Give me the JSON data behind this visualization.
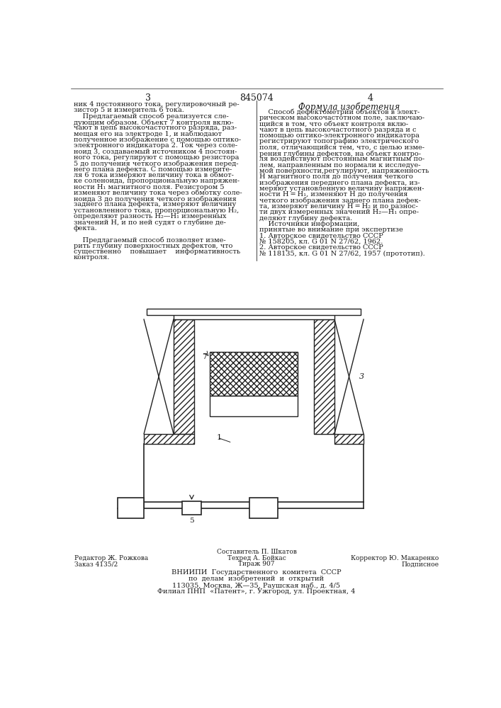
{
  "page_num_left": "3",
  "page_num_center": "845074",
  "page_num_right": "4",
  "formula_title": "Формула изобретения",
  "left_col_text": [
    "ник 4 постоянного тока, регулировочный ре-",
    "зистор 5 и измеритель 6 тока.",
    "    Предлагаемый способ реализуется сле-",
    "дующим образом. Объект 7 контроля вклю-",
    "чают в цепь высокочастотного разряда, раз-",
    "мещая его на электроде 1, и наблюдают",
    "полученное изображение с помощью оптико-",
    "электронного индикатора 2. Ток через соле-",
    "ноид 3, создаваемый источником 4 постоян-",
    "ного тока, регулируют с помощью резистора",
    "5 до получения четкого изображения перед-",
    "него плана дефекта. С помощью измерите-",
    "ля 6 тока измеряют величину тока в обмот-",
    "ке соленоида, пропорциональную напряжен-",
    "ности H₁ магнитного поля. Резистором 5",
    "изменяют величину тока через обмотку соле-",
    "ноида 3 до получения четкого изображения",
    "заднего плана дефекта, измеряют величину",
    "установленного тока, пропорциональную H₂,",
    "определяют разность H₂—H₁ измеренных",
    "значений H, и по ней судят о глубине де-",
    "фекта.",
    "",
    "    Предлагаемый способ позволяет изме-",
    "рить глубину поверхностных дефектов, что",
    "существенно    повышает    информативность",
    "контроля."
  ],
  "right_col_text_line1": "    Способ дефектометрии объектов в элект-",
  "right_col_text": [
    "    Способ дефектометрии объектов в элект-",
    "рическом высокочастотном поле, заключаю-",
    "щийся в том, что объект контроля вклю-",
    "чают в цепь высокочастотного разряда и с",
    "помощью оптико-электронного индикатора",
    "регистрируют топографию электрического",
    "поля, отличающийся тем, что, с целью изме-",
    "рения глубины дефектов, на объект контро-",
    "ля воздействуют постоянным магнитным по-",
    "лем, направленным по нормали к исследуе-",
    "мой поверхности,регулируют, напряженность",
    "H магнитного поля до получения четкого",
    "изображения переднего плана дефекта, из-",
    "меряют установленную величину напряжен-",
    "ности H = H₁, изменяют H до получения",
    "четкого изображения заднего плана дефек-",
    "та, измеряют величину H = H₂ и по разнос-",
    "ти двух измеренных значений H₂—H₁ опре-",
    "деляют глубину дефекта.",
    "    Источники информации,",
    "принятые во внимание при экспертизе",
    "1. Авторское свидетельство СССР",
    "№ 158205, кл. G 01 N 27/62, 1962.",
    "2. Авторское свидетельство СССР",
    "№ 118135, кл. G 01 N 27/62, 1957 (прототип)."
  ],
  "footer_left_line1": "Редактор Ж. Рожкова",
  "footer_left_line2": "Заказ 4135/2",
  "footer_center_line1": "Составитель П. Шкатов",
  "footer_center_line2": "Техред А. Бойкас",
  "footer_center_line3": "Тираж 907",
  "footer_right_line1": "Корректор Ю. Макаренко",
  "footer_right_line2": "Подписное",
  "footer_vnipi_line1": "ВНИИПИ  Государственного  комитета  СССР",
  "footer_vnipi_line2": "по  делам  изобретений  и  открытий",
  "footer_vnipi_line3": "113035, Москва, Ж—35, Раушская наб., д. 4/5",
  "footer_vnipi_line4": "Филиал ПНП  «Патент», г. Ужгород, ул. Проектная, 4",
  "bg_color": "#ffffff",
  "text_color": "#1a1a1a",
  "line_color": "#222222"
}
